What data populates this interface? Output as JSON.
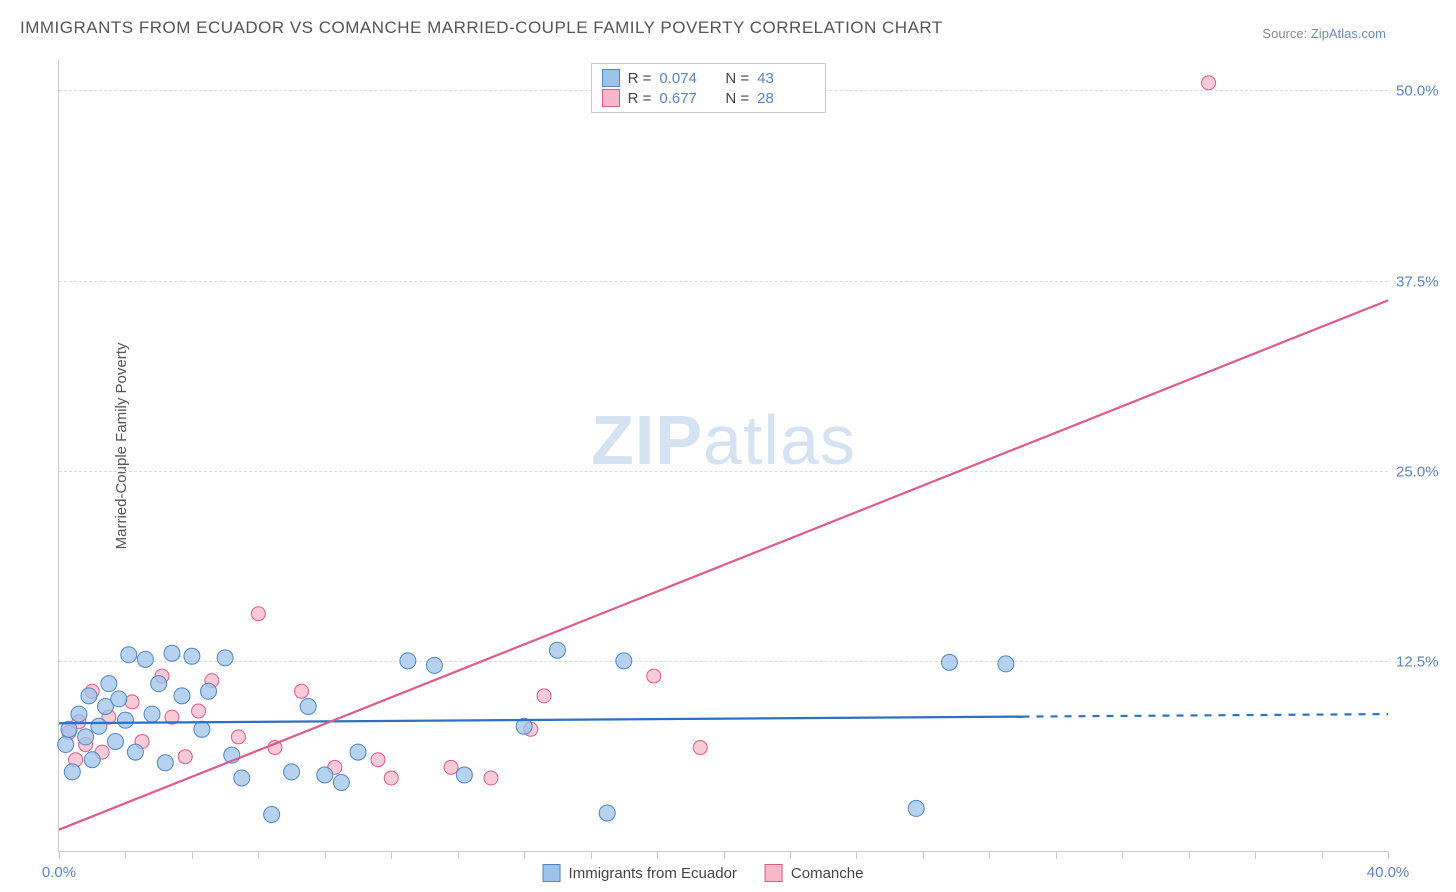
{
  "title": "IMMIGRANTS FROM ECUADOR VS COMANCHE MARRIED-COUPLE FAMILY POVERTY CORRELATION CHART",
  "source_label": "Source:",
  "source_value": "ZipAtlas.com",
  "ylabel": "Married-Couple Family Poverty",
  "watermark_a": "ZIP",
  "watermark_b": "atlas",
  "chart": {
    "type": "scatter-with-trend",
    "xlim": [
      0,
      40
    ],
    "ylim": [
      0,
      52
    ],
    "x_ticks_minor": [
      0,
      2,
      4,
      6,
      8,
      10,
      12,
      14,
      16,
      18,
      20,
      22,
      24,
      26,
      28,
      30,
      32,
      34,
      36,
      38,
      40
    ],
    "x_labels": [
      {
        "v": 0,
        "t": "0.0%"
      },
      {
        "v": 40,
        "t": "40.0%"
      }
    ],
    "y_grid": [
      {
        "v": 12.5,
        "t": "12.5%"
      },
      {
        "v": 25.0,
        "t": "25.0%"
      },
      {
        "v": 37.5,
        "t": "37.5%"
      },
      {
        "v": 50.0,
        "t": "50.0%"
      }
    ],
    "background_color": "#ffffff",
    "grid_color": "#dcdcdc",
    "axis_color": "#c9c9c9"
  },
  "series": {
    "a": {
      "name": "Immigrants from Ecuador",
      "fill": "#9ec3ea",
      "stroke": "#4e86c6",
      "opacity": 0.75,
      "marker_radius": 8,
      "R_label": "R =",
      "R": "0.074",
      "N_label": "N =",
      "N": "43",
      "trend": {
        "x1": 0,
        "y1": 8.4,
        "x2": 40,
        "y2": 9.0,
        "dash_after_x": 29,
        "color": "#2d71c4",
        "width": 2.2
      },
      "points": [
        [
          0.2,
          7.0
        ],
        [
          0.3,
          8.0
        ],
        [
          0.4,
          5.2
        ],
        [
          0.6,
          9.0
        ],
        [
          0.8,
          7.5
        ],
        [
          0.9,
          10.2
        ],
        [
          1.0,
          6.0
        ],
        [
          1.2,
          8.2
        ],
        [
          1.4,
          9.5
        ],
        [
          1.5,
          11.0
        ],
        [
          1.7,
          7.2
        ],
        [
          1.8,
          10.0
        ],
        [
          2.0,
          8.6
        ],
        [
          2.1,
          12.9
        ],
        [
          2.3,
          6.5
        ],
        [
          2.6,
          12.6
        ],
        [
          2.8,
          9.0
        ],
        [
          3.0,
          11.0
        ],
        [
          3.2,
          5.8
        ],
        [
          3.4,
          13.0
        ],
        [
          3.7,
          10.2
        ],
        [
          4.0,
          12.8
        ],
        [
          4.3,
          8.0
        ],
        [
          4.5,
          10.5
        ],
        [
          5.0,
          12.7
        ],
        [
          5.2,
          6.3
        ],
        [
          5.5,
          4.8
        ],
        [
          6.4,
          2.4
        ],
        [
          7.0,
          5.2
        ],
        [
          7.5,
          9.5
        ],
        [
          8.0,
          5.0
        ],
        [
          8.5,
          4.5
        ],
        [
          9.0,
          6.5
        ],
        [
          10.5,
          12.5
        ],
        [
          11.3,
          12.2
        ],
        [
          12.2,
          5.0
        ],
        [
          14.0,
          8.2
        ],
        [
          15.0,
          13.2
        ],
        [
          16.5,
          2.5
        ],
        [
          17.0,
          12.5
        ],
        [
          25.8,
          2.8
        ],
        [
          26.8,
          12.4
        ],
        [
          28.5,
          12.3
        ]
      ]
    },
    "b": {
      "name": "Comanche",
      "fill": "#f6b9c9",
      "stroke": "#e15a8a",
      "opacity": 0.75,
      "marker_radius": 7,
      "R_label": "R =",
      "R": "0.677",
      "N_label": "N =",
      "N": "28",
      "trend": {
        "x1": 0,
        "y1": 1.4,
        "x2": 40,
        "y2": 36.2,
        "color": "#e15a8a",
        "width": 2.2
      },
      "points": [
        [
          0.3,
          7.8
        ],
        [
          0.5,
          6.0
        ],
        [
          0.6,
          8.5
        ],
        [
          0.8,
          7.0
        ],
        [
          1.0,
          10.5
        ],
        [
          1.3,
          6.5
        ],
        [
          1.5,
          8.8
        ],
        [
          2.2,
          9.8
        ],
        [
          2.5,
          7.2
        ],
        [
          3.1,
          11.5
        ],
        [
          3.4,
          8.8
        ],
        [
          3.8,
          6.2
        ],
        [
          4.2,
          9.2
        ],
        [
          4.6,
          11.2
        ],
        [
          5.4,
          7.5
        ],
        [
          6.0,
          15.6
        ],
        [
          6.5,
          6.8
        ],
        [
          7.3,
          10.5
        ],
        [
          8.3,
          5.5
        ],
        [
          9.6,
          6.0
        ],
        [
          10.0,
          4.8
        ],
        [
          11.8,
          5.5
        ],
        [
          13.0,
          4.8
        ],
        [
          14.6,
          10.2
        ],
        [
          14.2,
          8.0
        ],
        [
          17.9,
          11.5
        ],
        [
          19.3,
          6.8
        ],
        [
          34.6,
          50.5
        ]
      ]
    }
  }
}
